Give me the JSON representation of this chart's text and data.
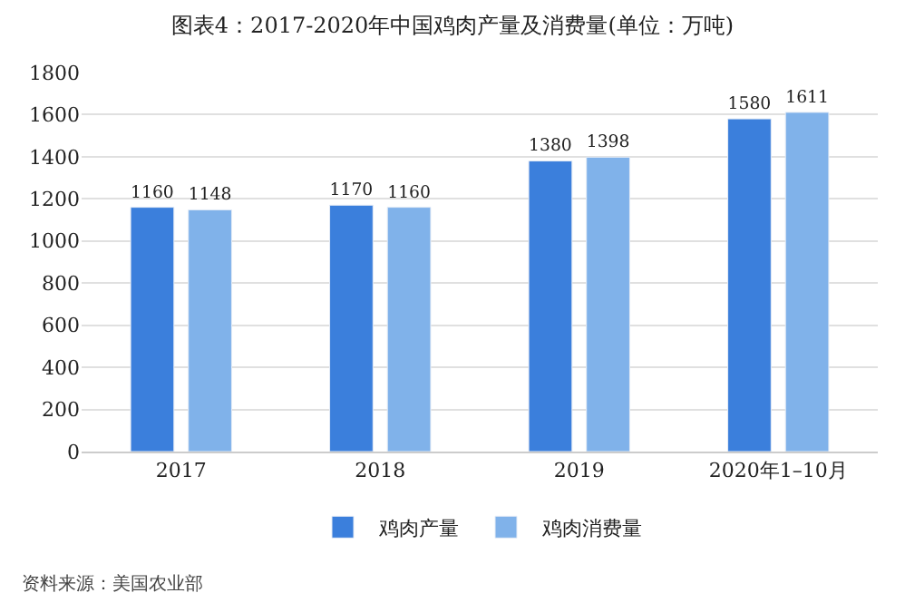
{
  "chart_data": {
    "type": "bar",
    "title": "图表4：2017-2020年中国鸡肉产量及消费量(单位：万吨)",
    "categories": [
      "2017",
      "2018",
      "2019",
      "2020年1–10月"
    ],
    "series": [
      {
        "name": "鸡肉产量",
        "color": "#3b7fdc",
        "values": [
          1160,
          1170,
          1380,
          1580
        ]
      },
      {
        "name": "鸡肉消费量",
        "color": "#80b2ea",
        "values": [
          1148,
          1160,
          1398,
          1611
        ]
      }
    ],
    "ylim": [
      0,
      1800
    ],
    "yticks": [
      0,
      200,
      400,
      600,
      800,
      1000,
      1200,
      1400,
      1600,
      1800
    ],
    "grid": "y",
    "legend": "bottom",
    "data_labels": true,
    "annotations": [
      "资料来源：美国农业部"
    ]
  }
}
